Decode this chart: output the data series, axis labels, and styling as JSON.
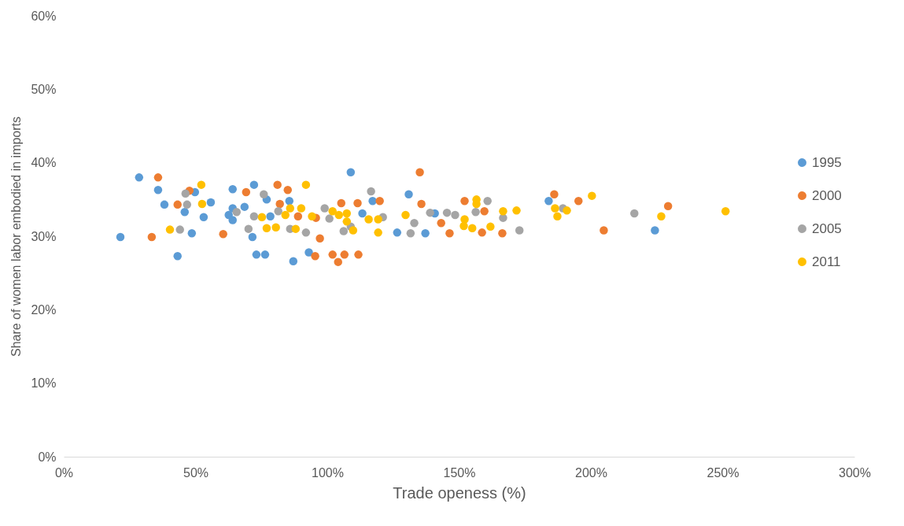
{
  "chart_data": {
    "type": "scatter",
    "xlabel": "Trade openess (%)",
    "ylabel": "Share of women labor embodied in imports",
    "xlim": [
      0,
      300
    ],
    "ylim": [
      0,
      60
    ],
    "xticks": [
      {
        "value": 0,
        "label": "0%"
      },
      {
        "value": 50,
        "label": "50%"
      },
      {
        "value": 100,
        "label": "100%"
      },
      {
        "value": 150,
        "label": "150%"
      },
      {
        "value": 200,
        "label": "200%"
      },
      {
        "value": 250,
        "label": "250%"
      },
      {
        "value": 300,
        "label": "300%"
      }
    ],
    "yticks": [
      {
        "value": 0,
        "label": "0%"
      },
      {
        "value": 10,
        "label": "10%"
      },
      {
        "value": 20,
        "label": "20%"
      },
      {
        "value": 30,
        "label": "30%"
      },
      {
        "value": 40,
        "label": "40%"
      },
      {
        "value": 50,
        "label": "50%"
      },
      {
        "value": 60,
        "label": "60%"
      }
    ],
    "grid": false,
    "legend": "right",
    "marker": "circle",
    "series": [
      {
        "name": "1995",
        "color": "#5b9bd5",
        "x": [
          21.5,
          28.6,
          35.8,
          38.2,
          43.2,
          45.9,
          48.6,
          49.8,
          53.1,
          55.8,
          62.6,
          64.1,
          64.1,
          64.1,
          68.6,
          71.6,
          72.2,
          73.1,
          76.4,
          77,
          78.4,
          85.6,
          87.1,
          93,
          108.9,
          113.3,
          117.2,
          126.5,
          130.9,
          137.2,
          140.8,
          184,
          224.3
        ],
        "values": [
          29.9,
          38,
          36.3,
          34.3,
          27.3,
          33.3,
          30.4,
          36,
          32.6,
          34.6,
          32.9,
          36.4,
          33.8,
          32.2,
          34,
          29.9,
          37,
          27.5,
          27.5,
          35,
          32.7,
          34.8,
          26.6,
          27.8,
          38.7,
          33.1,
          34.8,
          30.5,
          35.7,
          30.4,
          33.1,
          34.8,
          30.8
        ]
      },
      {
        "name": "2000",
        "color": "#ed7d31",
        "x": [
          33.4,
          35.8,
          47.7,
          43.2,
          60.5,
          69.2,
          81.1,
          82,
          85,
          88.9,
          95.7,
          97.2,
          95.4,
          102,
          104.1,
          106.5,
          111.8,
          105.3,
          111.5,
          119.9,
          135.1,
          135.7,
          143.2,
          146.4,
          152.1,
          158.7,
          159.6,
          166.4,
          186.1,
          195.3,
          204.9,
          229.3
        ],
        "values": [
          29.9,
          38,
          36.2,
          34.3,
          30.3,
          36,
          37,
          34.4,
          36.3,
          32.7,
          32.5,
          29.7,
          27.3,
          27.5,
          26.5,
          27.5,
          27.5,
          34.5,
          34.5,
          34.8,
          38.7,
          34.4,
          31.8,
          30.4,
          34.8,
          30.5,
          33.4,
          30.4,
          35.7,
          34.8,
          30.8,
          34.1
        ]
      },
      {
        "name": "2005",
        "color": "#a5a5a5",
        "x": [
          44.1,
          46.8,
          46.2,
          65.6,
          70.1,
          72.2,
          75.9,
          81.4,
          85.9,
          91.9,
          99,
          100.8,
          106.2,
          108.9,
          116.6,
          121.1,
          131.6,
          133,
          139,
          145.4,
          148.5,
          156.3,
          160.8,
          166.7,
          172.9,
          189.4,
          216.5
        ],
        "values": [
          30.9,
          34.3,
          35.8,
          33.3,
          31,
          32.7,
          35.7,
          33.4,
          31,
          30.5,
          33.8,
          32.4,
          30.7,
          31.3,
          36.1,
          32.6,
          30.4,
          31.8,
          33.2,
          33.2,
          32.9,
          33.3,
          34.8,
          32.5,
          30.8,
          33.8,
          33.1
        ]
      },
      {
        "name": "2011",
        "color": "#ffc000",
        "x": [
          40.3,
          52.2,
          52.5,
          75.2,
          77,
          80.5,
          84.1,
          85.9,
          88,
          90.1,
          91.9,
          94.2,
          102,
          104.4,
          107.4,
          109.8,
          107.4,
          115.7,
          119.3,
          119.3,
          129.7,
          151.8,
          152.1,
          155,
          156.6,
          156.6,
          161.9,
          166.7,
          171.8,
          186.4,
          187.3,
          190.9,
          200.4,
          226.7,
          251.1
        ],
        "values": [
          30.9,
          37,
          34.4,
          32.6,
          31.1,
          31.2,
          32.9,
          33.8,
          31,
          33.8,
          37,
          32.7,
          33.4,
          32.9,
          33.1,
          30.8,
          32,
          32.3,
          30.5,
          32.3,
          32.9,
          31.4,
          32.3,
          31.1,
          35,
          34.4,
          31.3,
          33.4,
          33.5,
          33.8,
          32.7,
          33.5,
          35.5,
          32.7,
          33.4
        ]
      }
    ]
  }
}
